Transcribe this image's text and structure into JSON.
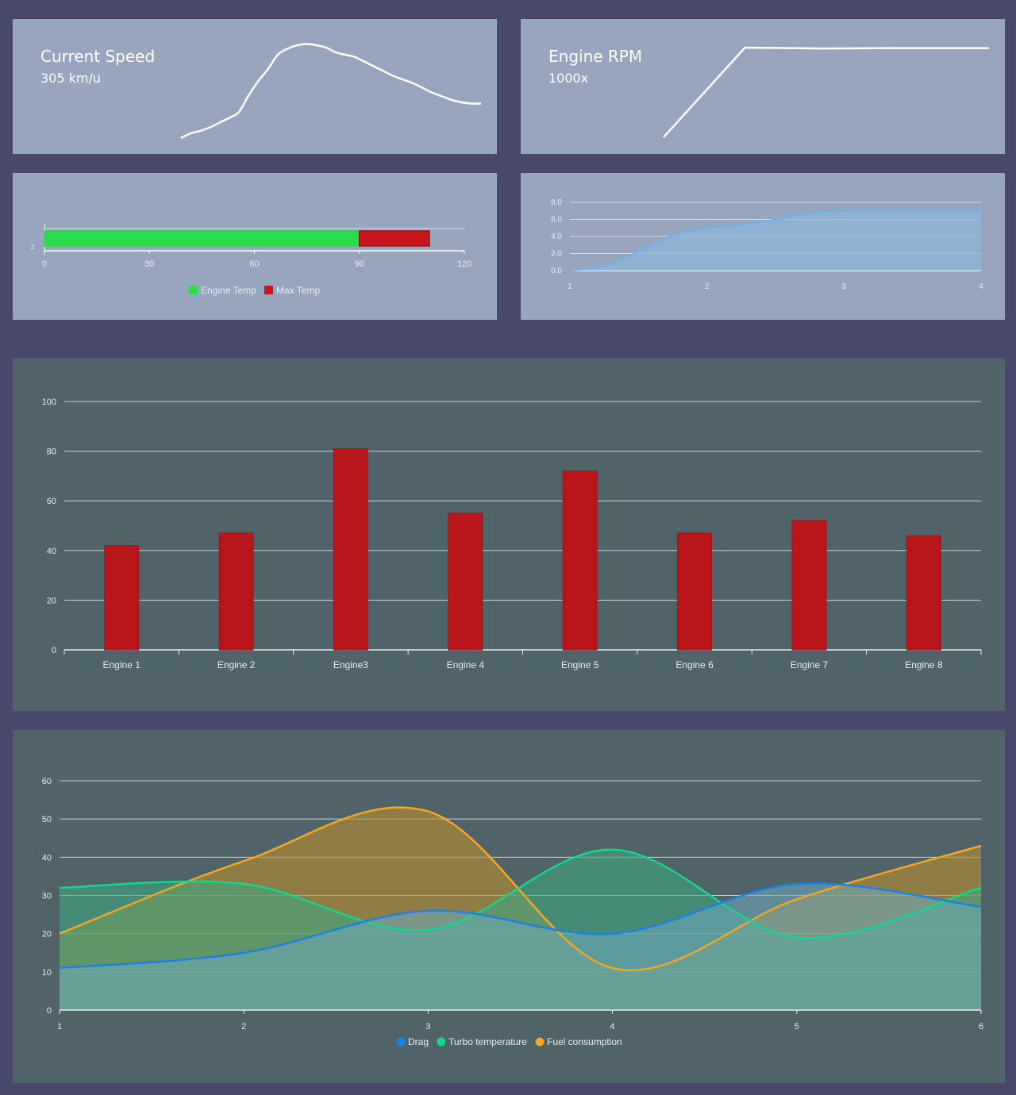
{
  "speed": {
    "title": "Current Speed",
    "value": "305 km/u",
    "chart_data": {
      "type": "line",
      "values": [
        0,
        4,
        6,
        9,
        13,
        17,
        22,
        36,
        48,
        58,
        70,
        75,
        78,
        79,
        78,
        76,
        72,
        70,
        68,
        64,
        60,
        56,
        52,
        49,
        46,
        42,
        38,
        35,
        32,
        30,
        29,
        29
      ]
    }
  },
  "rpm": {
    "title": "Engine RPM",
    "value": "1000x",
    "chart_data": {
      "type": "line",
      "values": [
        0,
        100,
        99,
        99.5,
        99.5,
        99.5
      ]
    }
  },
  "temp": {
    "chart_data": {
      "type": "bar",
      "orientation": "horizontal",
      "series": [
        {
          "name": "Engine Temp",
          "values": [
            90
          ],
          "color": "#2cdb4b"
        },
        {
          "name": "Max Temp",
          "values": [
            20
          ],
          "color": "#c8161e"
        }
      ],
      "xticks": [
        "0",
        "30",
        "60",
        "90",
        "120"
      ],
      "yticks": [
        "2"
      ],
      "xlim": [
        0,
        120
      ],
      "legend": "bottom"
    }
  },
  "area": {
    "chart_data": {
      "type": "area",
      "x": [
        1,
        1.25,
        1.5,
        1.75,
        2,
        2.25,
        2.5,
        2.75,
        3,
        3.5,
        4
      ],
      "values": [
        0,
        0.5,
        2.2,
        4.1,
        5,
        5.3,
        6,
        6.7,
        7,
        7,
        7
      ],
      "xticks": [
        "1",
        "2",
        "3",
        "4"
      ],
      "yticks": [
        "0.0",
        "2.0",
        "4.0",
        "6.0",
        "8.0"
      ],
      "xlim": [
        1,
        4
      ],
      "ylim": [
        0,
        8
      ]
    }
  },
  "bar": {
    "chart_data": {
      "type": "bar",
      "categories": [
        "Engine 1",
        "Engine 2",
        "Engine3",
        "Engine 4",
        "Engine 5",
        "Engine 6",
        "Engine 7",
        "Engine 8"
      ],
      "values": [
        42,
        47,
        81,
        55,
        72,
        47,
        52,
        46
      ],
      "yticks": [
        "0",
        "20",
        "40",
        "60",
        "80",
        "100"
      ],
      "ylim": [
        0,
        100
      ],
      "color": "#b8161b"
    }
  },
  "line": {
    "chart_data": {
      "type": "area",
      "x": [
        1,
        2,
        3,
        4,
        5,
        6
      ],
      "series": [
        {
          "name": "Drag",
          "values": [
            11,
            15,
            26,
            20,
            33,
            27
          ],
          "color": "#1a82e6"
        },
        {
          "name": "Turbo temperature",
          "values": [
            32,
            33,
            21,
            42,
            19,
            32
          ],
          "color": "#14d68e"
        },
        {
          "name": "Fuel consumption",
          "values": [
            20,
            39,
            52,
            11,
            29,
            43
          ],
          "color": "#f5a623"
        }
      ],
      "xticks": [
        "1",
        "2",
        "3",
        "4",
        "5",
        "6"
      ],
      "yticks": [
        "0",
        "10",
        "20",
        "30",
        "40",
        "50",
        "60"
      ],
      "ylim": [
        0,
        60
      ],
      "legend": "bottom"
    }
  }
}
